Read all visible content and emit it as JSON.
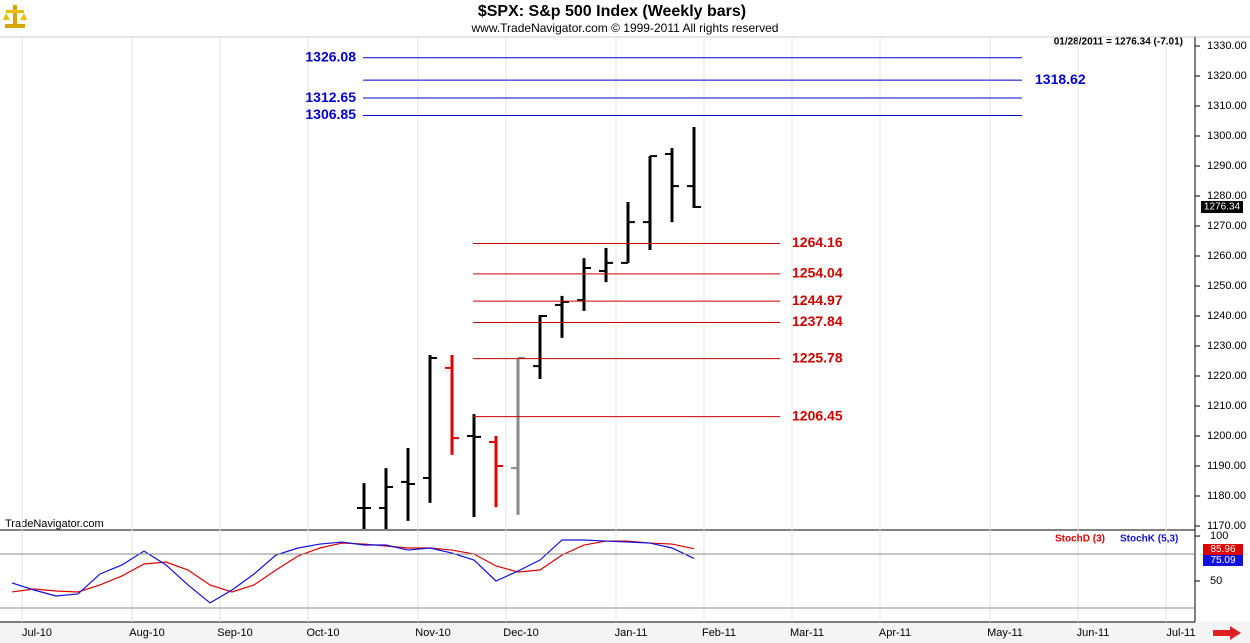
{
  "chart_data": [
    {
      "type": "ohlc",
      "title": "$SPX:  S&p 500 Index  (Weekly bars)",
      "subtitle": "www.TradeNavigator.com © 1999-2011 All rights reserved",
      "date_label": "01/28/2011 = 1276.34 (-7.01)",
      "watermark": "TradeNavigator.com",
      "categories": [
        null,
        "Jul-10",
        null,
        null,
        null,
        null,
        "Aug-10",
        null,
        null,
        null,
        "Sep-10",
        null,
        null,
        null,
        "Oct-10",
        null,
        null,
        null,
        null,
        "Nov-10",
        null,
        null,
        null,
        "Dec-10",
        null,
        null,
        null,
        null,
        "Jan-11",
        null,
        null,
        null,
        "Feb-11",
        null,
        null,
        null,
        "Mar-11",
        null,
        null,
        null,
        "Apr-11",
        null,
        null,
        null,
        null,
        "May-11",
        null,
        null,
        null,
        "Jun-11",
        null,
        null,
        null,
        "Jul-11"
      ],
      "open": [
        null,
        null,
        null,
        null,
        null,
        null,
        null,
        null,
        null,
        null,
        null,
        null,
        null,
        null,
        null,
        null,
        1176,
        1176,
        1184.7,
        1186,
        1222.7,
        1200,
        1198,
        1189.3,
        1223.3,
        1243.7,
        1245.3,
        1255,
        1257.7,
        1271.3,
        1294,
        1283.3,
        null,
        null,
        null,
        null,
        null,
        null,
        null,
        null,
        null,
        null,
        null,
        null,
        null,
        null,
        null,
        null,
        null,
        null,
        null,
        null,
        null,
        null
      ],
      "high": [
        null,
        null,
        null,
        null,
        null,
        null,
        null,
        null,
        null,
        null,
        null,
        null,
        null,
        null,
        null,
        null,
        1184.3,
        1189.3,
        1196,
        1227,
        1227,
        1207.3,
        1200,
        1225.7,
        1240.3,
        1246.7,
        1259.3,
        1262.7,
        1278,
        1293.3,
        1296,
        1303,
        null,
        null,
        null,
        null,
        null,
        null,
        null,
        null,
        null,
        null,
        null,
        null,
        null,
        null,
        null,
        null,
        null,
        null,
        null,
        null,
        null,
        null
      ],
      "low": [
        null,
        null,
        null,
        null,
        null,
        null,
        null,
        null,
        null,
        null,
        null,
        null,
        null,
        null,
        null,
        null,
        1169,
        1169,
        1171.7,
        1177.7,
        1193.7,
        1173,
        1176.3,
        1173.7,
        1219,
        1232.7,
        1241.7,
        1251.3,
        1257.7,
        1262,
        1271.3,
        1276,
        null,
        null,
        null,
        null,
        null,
        null,
        null,
        null,
        null,
        null,
        null,
        null,
        null,
        null,
        null,
        null,
        null,
        null,
        null,
        null,
        null,
        null
      ],
      "close": [
        null,
        null,
        null,
        null,
        null,
        null,
        null,
        null,
        null,
        null,
        null,
        null,
        null,
        null,
        null,
        null,
        1176,
        1183,
        1184,
        1226,
        1199.3,
        1199.7,
        1190,
        1226,
        1240,
        1244.7,
        1256,
        1257.7,
        1271.3,
        1293.3,
        1283.3,
        1276.34,
        null,
        null,
        null,
        null,
        null,
        null,
        null,
        null,
        null,
        null,
        null,
        null,
        null,
        null,
        null,
        null,
        null,
        null,
        null,
        null,
        null,
        null
      ],
      "bar_colors": [
        null,
        null,
        null,
        null,
        null,
        null,
        null,
        null,
        null,
        null,
        null,
        null,
        null,
        null,
        null,
        null,
        "#000000",
        "#000000",
        "#000000",
        "#000000",
        "#e00000",
        "#000000",
        "#e00000",
        "#888888",
        "#000000",
        "#000000",
        "#000000",
        "#000000",
        "#000000",
        "#000000",
        "#000000",
        "#000000",
        null,
        null,
        null,
        null,
        null,
        null,
        null,
        null,
        null,
        null,
        null,
        null,
        null,
        null,
        null,
        null,
        null,
        null,
        null,
        null,
        null,
        null
      ],
      "ylim": [
        1168.67,
        1332.67
      ],
      "yticks": [
        {
          "value": 1170,
          "label": "1170.00"
        },
        {
          "value": 1180,
          "label": "1180.00"
        },
        {
          "value": 1190,
          "label": "1190.00"
        },
        {
          "value": 1200,
          "label": "1200.00"
        },
        {
          "value": 1210,
          "label": "1210.00"
        },
        {
          "value": 1220,
          "label": "1220.00"
        },
        {
          "value": 1230,
          "label": "1230.00"
        },
        {
          "value": 1240,
          "label": "1240.00"
        },
        {
          "value": 1250,
          "label": "1250.00"
        },
        {
          "value": 1260,
          "label": "1260.00"
        },
        {
          "value": 1270,
          "label": "1270.00"
        },
        {
          "value": 1280,
          "label": "1280.00"
        },
        {
          "value": 1290,
          "label": "1290.00"
        },
        {
          "value": 1300,
          "label": "1300.00"
        },
        {
          "value": 1310,
          "label": "1310.00"
        },
        {
          "value": 1320,
          "label": "1320.00"
        },
        {
          "value": 1330,
          "label": "1330.00"
        }
      ],
      "levels": [
        {
          "value": 1326.08,
          "color": "#0000cc"
        },
        {
          "value": 1318.62,
          "color": "#0000cc"
        },
        {
          "value": 1312.65,
          "color": "#0000cc"
        },
        {
          "value": 1306.85,
          "color": "#0000cc"
        },
        {
          "value": 1264.16,
          "color": "#cc0000"
        },
        {
          "value": 1254.04,
          "color": "#cc0000"
        },
        {
          "value": 1244.97,
          "color": "#cc0000"
        },
        {
          "value": 1237.84,
          "color": "#cc0000"
        },
        {
          "value": 1225.78,
          "color": "#cc0000"
        },
        {
          "value": 1206.45,
          "color": "#cc0000"
        }
      ]
    },
    {
      "type": "line",
      "series": [
        {
          "name": "StochD (3)",
          "color": "#dd0000",
          "values": [
            37.8,
            41.1,
            38.9,
            37.8,
            45.6,
            55.6,
            68.9,
            71.1,
            62.2,
            45.6,
            37.8,
            45.6,
            62.2,
            77.8,
            86.7,
            92.2,
            91.1,
            88.9,
            86.7,
            86.7,
            84.4,
            80,
            66.7,
            60,
            62.2,
            78.9,
            90,
            94.4,
            94.4,
            92.2,
            91.1,
            85.96,
            null,
            null,
            null,
            null,
            null,
            null,
            null,
            null,
            null,
            null,
            null,
            null,
            null,
            null,
            null,
            null,
            null,
            null,
            null,
            null,
            null,
            null
          ]
        },
        {
          "name": "StochK (5,3)",
          "color": "#1010dd",
          "values": [
            47.8,
            40,
            33.3,
            35.6,
            57.8,
            67.8,
            83.3,
            67.8,
            45.6,
            25.6,
            40,
            57.8,
            78.9,
            86.7,
            91.1,
            93.3,
            90,
            90,
            84.4,
            86.7,
            81.1,
            73.3,
            50,
            61.1,
            73.3,
            95.6,
            95.6,
            94.4,
            93.3,
            92.2,
            86.7,
            75.09,
            null,
            null,
            null,
            null,
            null,
            null,
            null,
            null,
            null,
            null,
            null,
            null,
            null,
            null,
            null,
            null,
            null,
            null,
            null,
            null,
            null,
            null
          ]
        }
      ],
      "ylim": [
        4.4,
        105.6
      ],
      "yticks": [
        50,
        100
      ],
      "reference_lines": [
        80,
        20
      ]
    }
  ]
}
